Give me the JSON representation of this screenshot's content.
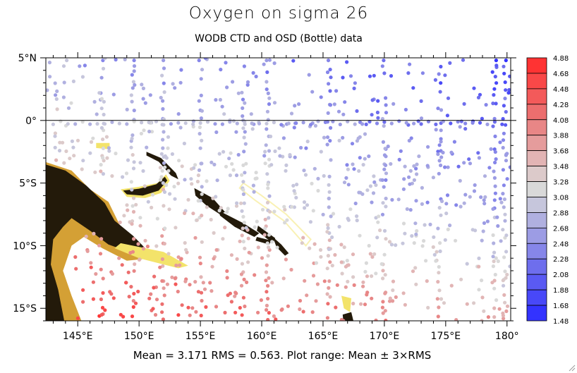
{
  "title": "Oxygen on sigma 26",
  "subtitle": "WODB CTD and OSD (Bottle) data",
  "footer": "Mean = 3.171  RMS = 0.563. Plot range: Mean ± 3×RMS",
  "map": {
    "lon_range": [
      142.4,
      180.3
    ],
    "lat_range": [
      -16,
      5
    ],
    "lat_ticks": [
      {
        "v": 5,
        "label": "5°N"
      },
      {
        "v": 0,
        "label": "0°"
      },
      {
        "v": -5,
        "label": "5°S"
      },
      {
        "v": -10,
        "label": "10°S"
      },
      {
        "v": -15,
        "label": "15°S"
      }
    ],
    "lon_ticks": [
      {
        "v": 145,
        "label": "145°E"
      },
      {
        "v": 150,
        "label": "150°E"
      },
      {
        "v": 155,
        "label": "155°E"
      },
      {
        "v": 160,
        "label": "160°E"
      },
      {
        "v": 165,
        "label": "165°E"
      },
      {
        "v": 170,
        "label": "170°E"
      },
      {
        "v": 175,
        "label": "175°E"
      },
      {
        "v": 180,
        "label": "180°"
      }
    ]
  },
  "colorbar": {
    "labels": [
      "4.88",
      "4.68",
      "4.48",
      "4.28",
      "4.08",
      "3.88",
      "3.68",
      "3.48",
      "3.28",
      "3.08",
      "2.88",
      "2.68",
      "2.48",
      "2.28",
      "2.08",
      "1.88",
      "1.68",
      "1.48"
    ],
    "colors": [
      "#ff3333",
      "#f94848",
      "#f35a5a",
      "#ec6e6e",
      "#e88686",
      "#e59c9c",
      "#e2b4b4",
      "#dccaca",
      "#d9d9d9",
      "#c6c6dc",
      "#b0b0e0",
      "#9c9ce4",
      "#8686e9",
      "#6e6eed",
      "#5a5af3",
      "#4848f8",
      "#3333ff"
    ]
  },
  "land_colors": {
    "land": "#231a0a",
    "shelf": "#d4a035",
    "shallow": "#f3e36a"
  }
}
